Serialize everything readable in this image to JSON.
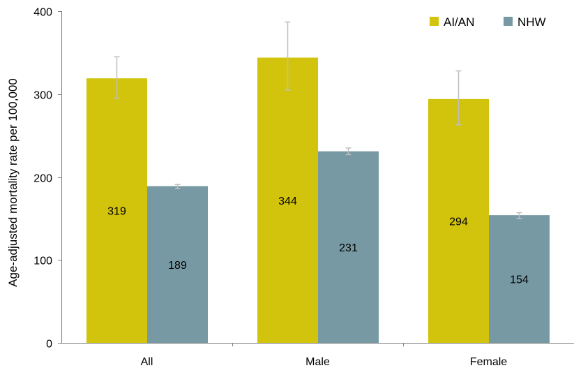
{
  "chart_data": {
    "type": "bar",
    "title": "",
    "xlabel": "",
    "ylabel": "Age-adjusted mortality rate per 100,000",
    "ylim": [
      0,
      400
    ],
    "yticks": [
      0,
      100,
      200,
      300,
      400
    ],
    "grid": false,
    "legend_position": "top-right",
    "categories": [
      "All",
      "Male",
      "Female"
    ],
    "series": [
      {
        "name": "AI/AN",
        "color": "#d2c40c",
        "values": [
          319,
          344,
          294
        ],
        "labels": [
          "319",
          "344",
          "294"
        ],
        "error_low": [
          295,
          305,
          263
        ],
        "error_high": [
          345,
          387,
          328
        ]
      },
      {
        "name": "NHW",
        "color": "#7799a3",
        "values": [
          189,
          231,
          154
        ],
        "labels": [
          "189",
          "231",
          "154"
        ],
        "error_low": [
          186,
          227,
          150
        ],
        "error_high": [
          191,
          235,
          157
        ]
      }
    ]
  }
}
